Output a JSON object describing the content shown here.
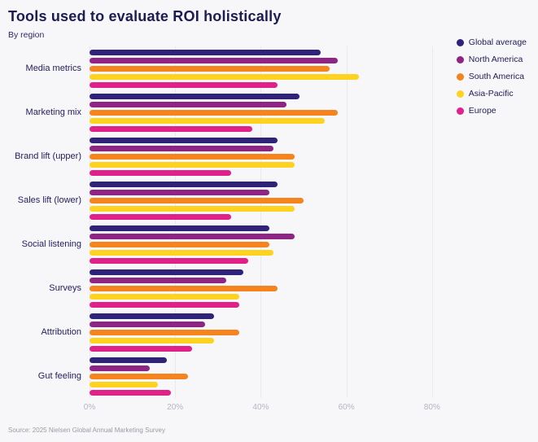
{
  "header": {
    "title": "Tools used to evaluate ROI holistically",
    "subtitle": "By region"
  },
  "source": "Source: 2025 Nielsen Global Annual Marketing Survey",
  "chart_data": {
    "type": "bar",
    "orientation": "horizontal",
    "title": "Tools used to evaluate ROI holistically",
    "subtitle": "By region",
    "categories": [
      "Media metrics",
      "Marketing mix",
      "Brand lift (upper)",
      "Sales lift (lower)",
      "Social listening",
      "Surveys",
      "Attribution",
      "Gut feeling"
    ],
    "series": [
      {
        "name": "Global average",
        "color": "#2e2379",
        "values": [
          54,
          49,
          44,
          44,
          42,
          36,
          29,
          18
        ]
      },
      {
        "name": "North America",
        "color": "#8e2483",
        "values": [
          58,
          46,
          43,
          42,
          48,
          32,
          27,
          14
        ]
      },
      {
        "name": "South America",
        "color": "#f5841f",
        "values": [
          56,
          58,
          48,
          50,
          42,
          44,
          35,
          23
        ]
      },
      {
        "name": "Asia-Pacific",
        "color": "#ffd21f",
        "values": [
          63,
          55,
          48,
          48,
          43,
          35,
          29,
          16
        ]
      },
      {
        "name": "Europe",
        "color": "#e0218a",
        "values": [
          44,
          38,
          33,
          33,
          37,
          35,
          24,
          19
        ]
      }
    ],
    "x_ticks": [
      "0%",
      "20%",
      "40%",
      "60%",
      "80%"
    ],
    "x_max": 100,
    "grid": true,
    "legend_position": "top-right",
    "background": "#f7f7fa"
  }
}
